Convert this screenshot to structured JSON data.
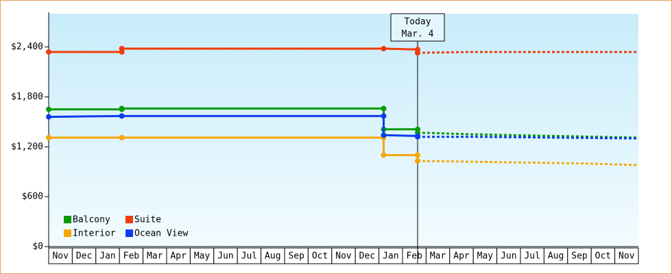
{
  "chart_data": {
    "type": "line",
    "categories": [
      "Nov",
      "Dec",
      "Jan",
      "Feb",
      "Mar",
      "Apr",
      "May",
      "Jun",
      "Jul",
      "Aug",
      "Sep",
      "Oct",
      "Nov",
      "Dec",
      "Jan",
      "Feb",
      "Mar",
      "Apr",
      "May",
      "Jun",
      "Jul",
      "Aug",
      "Sep",
      "Oct",
      "Nov"
    ],
    "xlim": [
      0,
      25
    ],
    "ylim": [
      0,
      2800
    ],
    "yticks": [
      {
        "value": 0,
        "label": "$0"
      },
      {
        "value": 600,
        "label": "$600"
      },
      {
        "value": 1200,
        "label": "$1,200"
      },
      {
        "value": 1800,
        "label": "$1,800"
      },
      {
        "value": 2400,
        "label": "$2,400"
      }
    ],
    "legend": "lower left",
    "annotation": {
      "x": 15.64,
      "lines": [
        "Today",
        "Mar. 4"
      ]
    },
    "series": [
      {
        "name": "Balcony",
        "color": "#0a9a0a",
        "x": [
          0,
          3.1,
          3.1,
          14.2,
          14.2,
          15.64
        ],
        "values": [
          1650,
          1650,
          1660,
          1660,
          1410,
          1410
        ],
        "forecast": {
          "x": [
            15.64,
            18,
            25
          ],
          "values": [
            1370,
            1350,
            1310
          ]
        }
      },
      {
        "name": "Suite",
        "color": "#f03c0c",
        "x": [
          0,
          3.1,
          3.1,
          14.2,
          15.64,
          15.64
        ],
        "values": [
          2340,
          2340,
          2380,
          2380,
          2370,
          2330
        ],
        "forecast": {
          "x": [
            15.64,
            18,
            22.6,
            25
          ],
          "values": [
            2330,
            2340,
            2340,
            2340
          ]
        }
      },
      {
        "name": "Interior",
        "color": "#f5a60a",
        "x": [
          0,
          3.1,
          14.2,
          14.2,
          15.64,
          15.64
        ],
        "values": [
          1310,
          1310,
          1310,
          1100,
          1100,
          1030
        ],
        "forecast": {
          "x": [
            15.64,
            18,
            22.6,
            25
          ],
          "values": [
            1030,
            1020,
            1000,
            980
          ]
        }
      },
      {
        "name": "Ocean View",
        "color": "#0b3cf0",
        "x": [
          0,
          3.1,
          14.2,
          14.2,
          15.64
        ],
        "values": [
          1560,
          1570,
          1570,
          1340,
          1330
        ],
        "forecast": {
          "x": [
            15.64,
            18,
            25
          ],
          "values": [
            1320,
            1320,
            1300
          ]
        }
      }
    ]
  }
}
